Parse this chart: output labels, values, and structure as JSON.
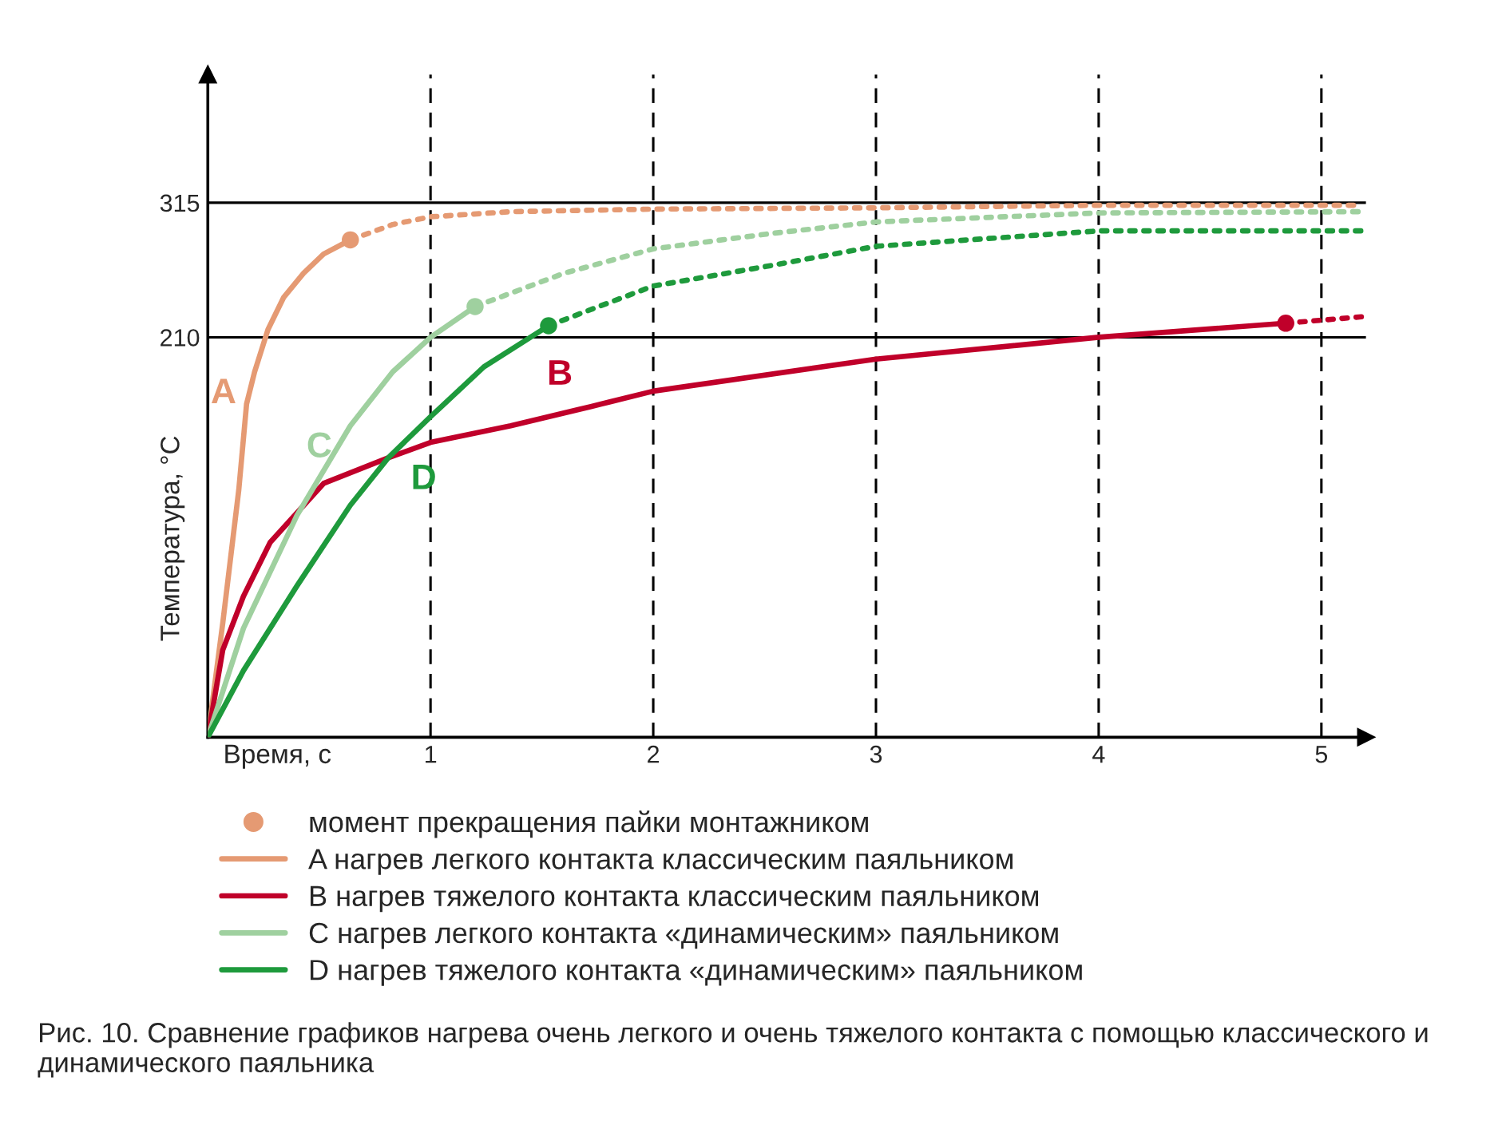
{
  "chart_data": {
    "type": "line",
    "xlabel": "Время, с",
    "ylabel": "Температура, °C",
    "xlim": [
      0,
      5.2
    ],
    "ylim": [
      -102,
      415
    ],
    "xticks": [
      1,
      2,
      3,
      4,
      5
    ],
    "yticks": [
      210,
      315
    ],
    "grid": true,
    "legend": "bottom",
    "marker": "none",
    "series": [
      {
        "name": "A нагрев легкого контакта классическим паяльником",
        "color": "#e59a73",
        "line_style": "solid",
        "x": [
          0,
          0.067,
          0.139,
          0.174,
          0.21,
          0.27,
          0.34,
          0.43,
          0.52,
          0.64
        ],
        "values": [
          -102,
          -13,
          91,
          158,
          183,
          216,
          241,
          260,
          275,
          286
        ]
      },
      {
        "color": "#e59a73",
        "line_style": "dotted",
        "x": [
          0.64,
          0.83,
          1.0,
          1.36,
          2.0,
          3.0,
          4.0,
          5.18
        ],
        "values": [
          286,
          298,
          304,
          308,
          310,
          311,
          313,
          313
        ]
      },
      {
        "name": "B нагрев тяжелого контакта классическим паяльником",
        "color": "#c0002a",
        "line_style": "solid",
        "x": [
          0,
          0.067,
          0.16,
          0.28,
          0.52,
          0.81,
          1.0,
          1.36,
          1.72,
          2.0,
          3.0,
          4.0,
          4.84
        ],
        "values": [
          -102,
          -34,
          8,
          50,
          96,
          116,
          128,
          141,
          156,
          168,
          193,
          210,
          221
        ]
      },
      {
        "color": "#c0002a",
        "line_style": "dotted",
        "x": [
          4.84,
          5.18
        ],
        "values": [
          221,
          226
        ]
      },
      {
        "name": "C нагрев легкого контакта «динамическим» паяльником",
        "color": "#9fd09f",
        "line_style": "solid",
        "x": [
          0,
          0.16,
          0.4,
          0.64,
          0.83,
          1.0,
          1.2
        ],
        "values": [
          -102,
          -17,
          71,
          141,
          183,
          210,
          234
        ]
      },
      {
        "color": "#9fd09f",
        "line_style": "dotted",
        "x": [
          1.2,
          1.6,
          2.0,
          2.53,
          3.0,
          4.0,
          5.18
        ],
        "values": [
          234,
          260,
          279,
          291,
          300,
          307,
          308
        ]
      },
      {
        "name": "D нагрев тяжелого контакта «динамическим» паяльником",
        "color": "#1e9a3c",
        "line_style": "solid",
        "x": [
          0,
          0.16,
          0.4,
          0.64,
          0.81,
          1.0,
          1.24,
          1.53
        ],
        "values": [
          -102,
          -50,
          16,
          79,
          116,
          148,
          187,
          219
        ]
      },
      {
        "color": "#1e9a3c",
        "line_style": "dotted",
        "x": [
          1.53,
          1.74,
          2.0,
          2.53,
          3.0,
          4.0,
          5.18
        ],
        "values": [
          219,
          233,
          250,
          266,
          281,
          293,
          293
        ]
      },
      {
        "type": "scatter",
        "name": "момент прекращения пайки монтажником",
        "marker": "circle",
        "colors": [
          "#e59a73",
          "#c0002a",
          "#9fd09f",
          "#1e9a3c"
        ],
        "x": [
          0.64,
          4.84,
          1.2,
          1.53
        ],
        "values": [
          286,
          221,
          234,
          219
        ]
      }
    ],
    "annotations": [
      "A",
      "B",
      "C",
      "D",
      "Рис. 10. Сравнение графиков нагрева очень легкого и очень тяжелого контакта с помощью классического и динамического паяльника"
    ]
  }
}
